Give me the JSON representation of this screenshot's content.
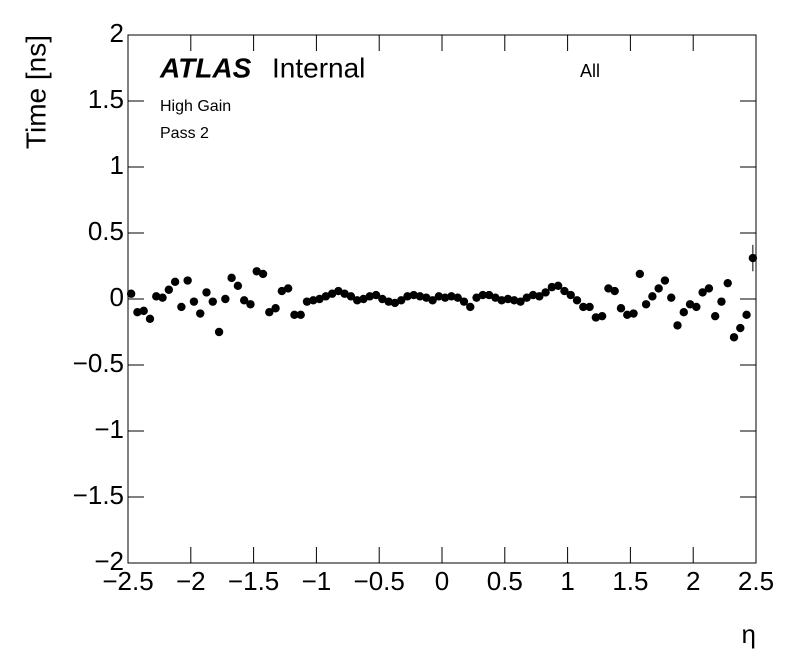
{
  "chart_data": {
    "type": "scatter",
    "title": "ATLAS",
    "subtitle": "Internal",
    "annotations": [
      "All",
      "High Gain",
      "Pass 2"
    ],
    "xlabel": "η",
    "ylabel": "Time [ns]",
    "color": "#000000",
    "xlim": [
      -2.5,
      2.5
    ],
    "ylim": [
      -2,
      2
    ],
    "xticks": [
      {
        "value": -2.5,
        "label": "−2.5"
      },
      {
        "value": -2,
        "label": "−2"
      },
      {
        "value": -1.5,
        "label": "−1.5"
      },
      {
        "value": -1,
        "label": "−1"
      },
      {
        "value": -0.5,
        "label": "−0.5"
      },
      0,
      0.5,
      1,
      1.5,
      2,
      2.5
    ],
    "yticks": [
      {
        "value": -2,
        "label": "−2"
      },
      {
        "value": -1.5,
        "label": "−1.5"
      },
      {
        "value": -1,
        "label": "−1"
      },
      {
        "value": -0.5,
        "label": "−0.5"
      },
      0,
      0.5,
      1,
      1.5,
      2
    ],
    "x": [
      -2.475,
      -2.425,
      -2.375,
      -2.325,
      -2.275,
      -2.225,
      -2.175,
      -2.125,
      -2.075,
      -2.025,
      -1.975,
      -1.925,
      -1.875,
      -1.825,
      -1.775,
      -1.725,
      -1.675,
      -1.625,
      -1.575,
      -1.525,
      -1.475,
      -1.425,
      -1.375,
      -1.325,
      -1.275,
      -1.225,
      -1.175,
      -1.125,
      -1.075,
      -1.025,
      -0.975,
      -0.925,
      -0.875,
      -0.825,
      -0.775,
      -0.725,
      -0.675,
      -0.625,
      -0.575,
      -0.525,
      -0.475,
      -0.425,
      -0.375,
      -0.325,
      -0.275,
      -0.225,
      -0.175,
      -0.125,
      -0.075,
      -0.025,
      0.025,
      0.075,
      0.125,
      0.175,
      0.225,
      0.275,
      0.325,
      0.375,
      0.425,
      0.475,
      0.525,
      0.575,
      0.625,
      0.675,
      0.725,
      0.775,
      0.825,
      0.875,
      0.925,
      0.975,
      1.025,
      1.075,
      1.125,
      1.175,
      1.225,
      1.275,
      1.325,
      1.375,
      1.425,
      1.475,
      1.525,
      1.575,
      1.625,
      1.675,
      1.725,
      1.775,
      1.825,
      1.875,
      1.925,
      1.975,
      2.025,
      2.075,
      2.125,
      2.175,
      2.225,
      2.275,
      2.325,
      2.375,
      2.425,
      2.475
    ],
    "values": [
      0.04,
      -0.1,
      -0.09,
      -0.15,
      0.02,
      0.01,
      0.07,
      0.13,
      -0.06,
      0.14,
      -0.02,
      -0.11,
      0.05,
      -0.02,
      -0.25,
      0.0,
      0.16,
      0.1,
      -0.01,
      -0.04,
      0.21,
      0.19,
      -0.1,
      -0.07,
      0.06,
      0.08,
      -0.12,
      -0.12,
      -0.02,
      -0.01,
      0.0,
      0.02,
      0.04,
      0.06,
      0.04,
      0.02,
      -0.01,
      0.0,
      0.02,
      0.03,
      0.0,
      -0.02,
      -0.03,
      -0.01,
      0.02,
      0.03,
      0.02,
      0.01,
      -0.01,
      0.02,
      0.01,
      0.02,
      0.01,
      -0.02,
      -0.06,
      0.01,
      0.03,
      0.03,
      0.01,
      -0.01,
      0.0,
      -0.01,
      -0.02,
      0.01,
      0.03,
      0.02,
      0.05,
      0.09,
      0.1,
      0.06,
      0.03,
      -0.01,
      -0.06,
      -0.06,
      -0.14,
      -0.13,
      0.08,
      0.06,
      -0.07,
      -0.12,
      -0.11,
      0.19,
      -0.04,
      0.02,
      0.08,
      0.14,
      0.01,
      -0.2,
      -0.1,
      -0.04,
      -0.06,
      0.05,
      0.08,
      -0.13,
      -0.02,
      0.12,
      -0.29,
      -0.22,
      -0.12,
      0.31
    ],
    "errors": [
      0.01,
      0.01,
      0.01,
      0.01,
      0.01,
      0.01,
      0.01,
      0.01,
      0.01,
      0.01,
      0.01,
      0.01,
      0.01,
      0.01,
      0.01,
      0.01,
      0.01,
      0.01,
      0.01,
      0.01,
      0.01,
      0.01,
      0.01,
      0.01,
      0.01,
      0.01,
      0.01,
      0.01,
      0.01,
      0.01,
      0.01,
      0.01,
      0.01,
      0.01,
      0.01,
      0.01,
      0.01,
      0.01,
      0.01,
      0.01,
      0.01,
      0.01,
      0.01,
      0.01,
      0.01,
      0.01,
      0.01,
      0.01,
      0.01,
      0.01,
      0.01,
      0.01,
      0.01,
      0.01,
      0.01,
      0.01,
      0.01,
      0.01,
      0.01,
      0.01,
      0.01,
      0.01,
      0.01,
      0.01,
      0.01,
      0.01,
      0.01,
      0.01,
      0.01,
      0.01,
      0.01,
      0.01,
      0.01,
      0.01,
      0.01,
      0.01,
      0.01,
      0.01,
      0.01,
      0.01,
      0.01,
      0.01,
      0.01,
      0.01,
      0.01,
      0.01,
      0.01,
      0.01,
      0.01,
      0.01,
      0.01,
      0.01,
      0.01,
      0.01,
      0.01,
      0.01,
      0.02,
      0.02,
      0.02,
      0.1
    ]
  }
}
